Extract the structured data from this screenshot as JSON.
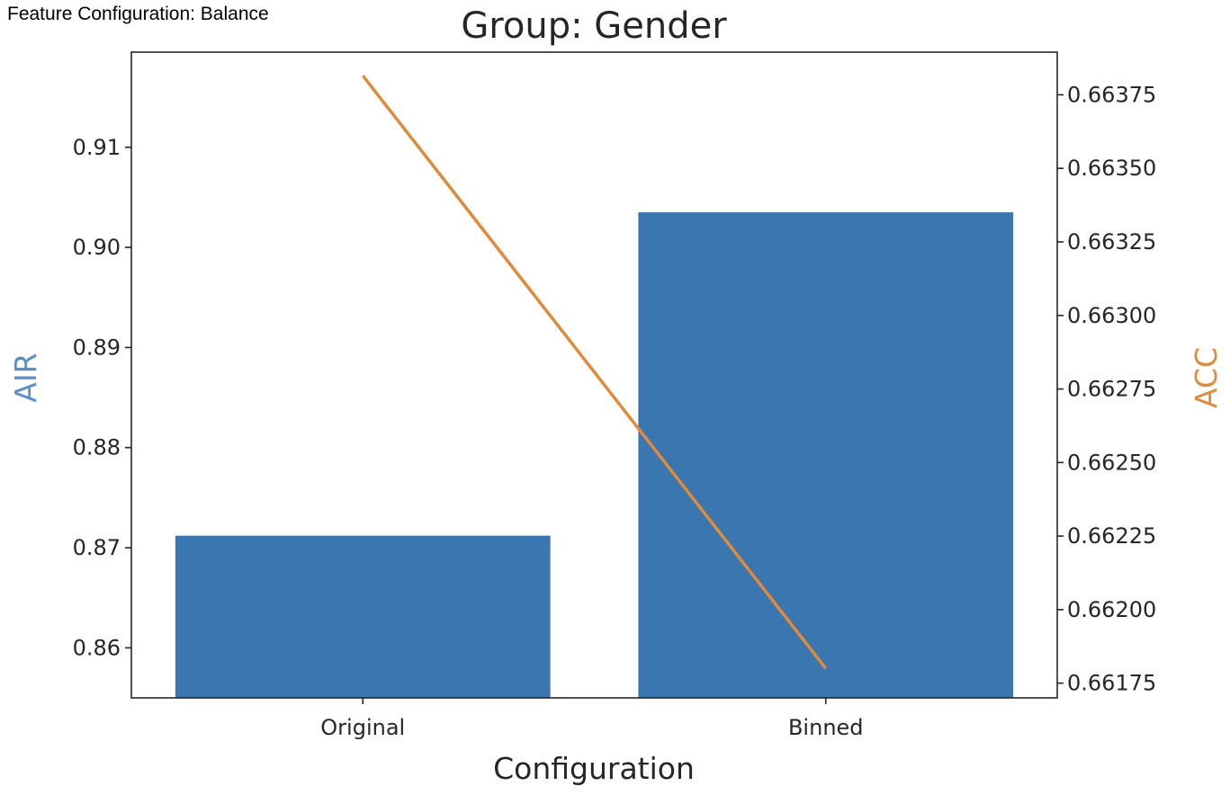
{
  "caption": "Feature Configuration: Balance",
  "chart_data": {
    "type": "bar",
    "title": "Group: Gender",
    "xlabel": "Configuration",
    "categories": [
      "Original",
      "Binned"
    ],
    "series": [
      {
        "name": "AIR",
        "type": "bar",
        "axis": "left",
        "ylabel": "AIR",
        "values": [
          0.8712,
          0.9035
        ],
        "color": "#3a76af"
      },
      {
        "name": "ACC",
        "type": "line",
        "axis": "right",
        "ylabel": "ACC",
        "values": [
          0.663815,
          0.6618
        ],
        "color": "#e08a3c"
      }
    ],
    "y_left": {
      "label": "AIR",
      "label_color": "#5b8fc7",
      "ylim": [
        0.855,
        0.9195
      ],
      "ticks": [
        0.86,
        0.87,
        0.88,
        0.89,
        0.9,
        0.91
      ],
      "tick_labels": [
        "0.86",
        "0.87",
        "0.88",
        "0.89",
        "0.90",
        "0.91"
      ]
    },
    "y_right": {
      "label": "ACC",
      "label_color": "#e08a3c",
      "ylim": [
        0.6617,
        0.663895
      ],
      "ticks": [
        0.66175,
        0.662,
        0.66225,
        0.6625,
        0.66275,
        0.663,
        0.66325,
        0.6635,
        0.66375
      ],
      "tick_labels": [
        "0.66175",
        "0.66200",
        "0.66225",
        "0.66250",
        "0.66275",
        "0.66300",
        "0.66325",
        "0.66350",
        "0.66375"
      ]
    },
    "grid": false
  }
}
